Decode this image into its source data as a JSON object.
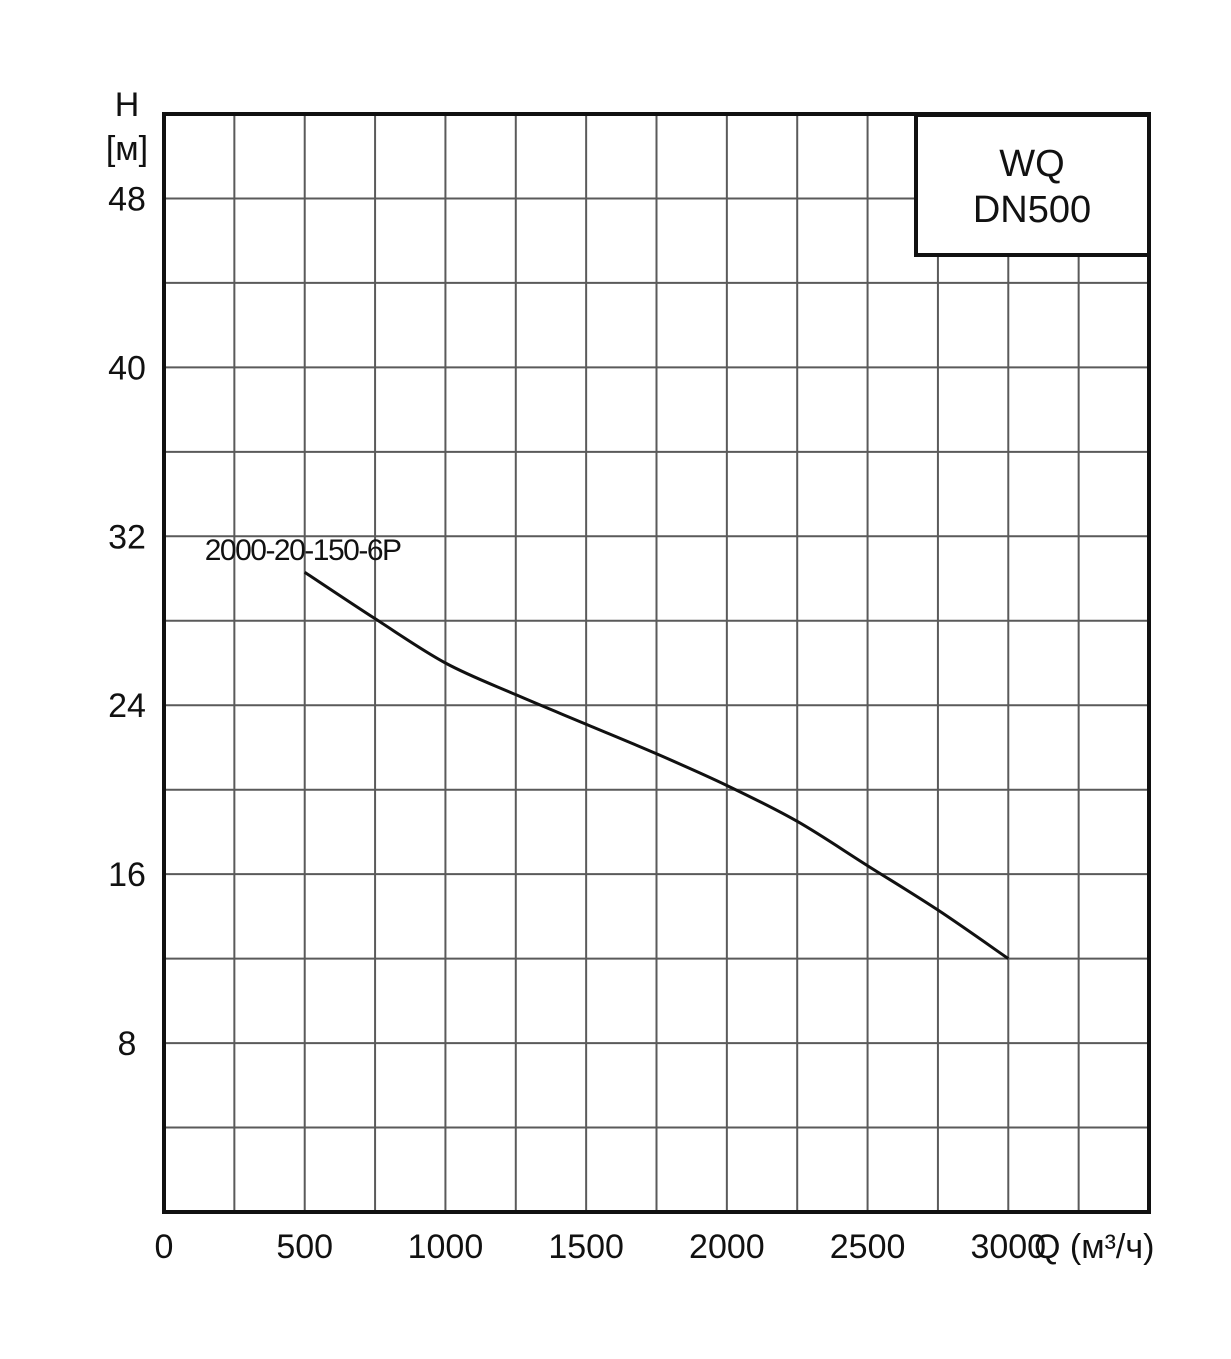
{
  "chart_data": {
    "type": "line",
    "title_box": {
      "line1": "WQ",
      "line2": "DN500"
    },
    "ylabel": {
      "symbol": "H",
      "unit": "[м]"
    },
    "xlabel": "Q (м³/ч)",
    "xlim": [
      0,
      3500
    ],
    "ylim": [
      0,
      52
    ],
    "x_grid_step": 250,
    "y_grid_step": 4,
    "x_ticks": [
      0,
      500,
      1000,
      1500,
      2000,
      2500,
      3000
    ],
    "x_tick_labels": [
      "0",
      "500",
      "1000",
      "1500",
      "2000",
      "2500",
      "3000"
    ],
    "y_ticks": [
      8,
      16,
      24,
      32,
      40,
      48
    ],
    "y_tick_labels": [
      "8",
      "16",
      "24",
      "32",
      "40",
      "48"
    ],
    "grid": true,
    "series": [
      {
        "name": "2000-20-150-6P",
        "x": [
          500,
          750,
          1000,
          1250,
          1500,
          1750,
          2000,
          2250,
          2500,
          2750,
          3000
        ],
        "y": [
          30.3,
          28.1,
          26.0,
          24.5,
          23.1,
          21.7,
          20.2,
          18.5,
          16.4,
          14.3,
          12.0
        ]
      }
    ]
  }
}
